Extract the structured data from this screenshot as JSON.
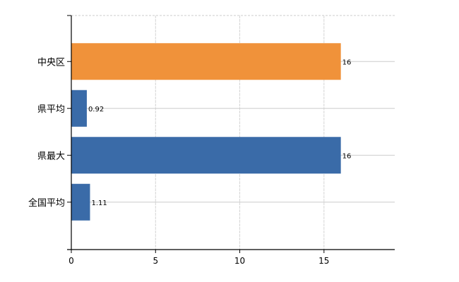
{
  "chart_data": {
    "type": "bar",
    "orientation": "horizontal",
    "title": "",
    "xlabel": "",
    "ylabel": "",
    "categories": [
      "中央区",
      "県平均",
      "県最大",
      "全国平均"
    ],
    "values": [
      16,
      0.92,
      16,
      1.11
    ],
    "value_labels": [
      "16",
      "0.92",
      "16",
      "1.11"
    ],
    "bar_colors": [
      "#F0923A",
      "#3A6BA8",
      "#3A6BA8",
      "#3A6BA8"
    ],
    "xlim": [
      0,
      19.2
    ],
    "x_ticks": [
      0,
      5,
      10,
      15
    ],
    "x_tick_labels": [
      "0",
      "5",
      "10",
      "15"
    ],
    "grid": true,
    "legend": null
  }
}
